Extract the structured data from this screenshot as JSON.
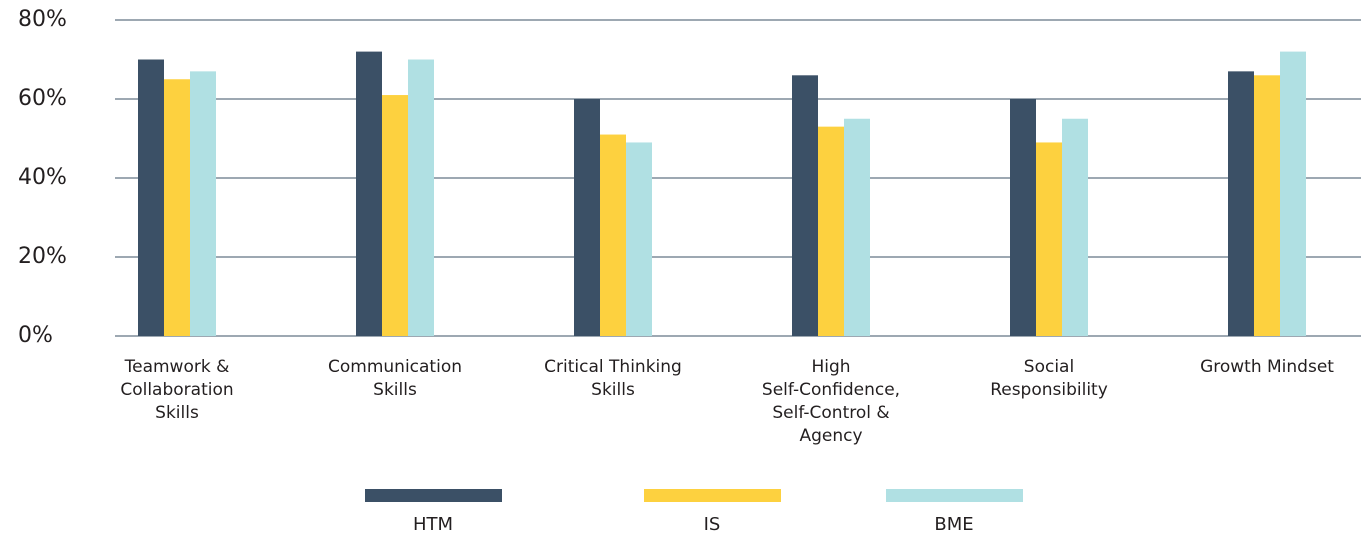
{
  "chart_data": {
    "type": "bar",
    "categories": [
      "Teamwork &\nCollaboration\nSkills",
      "Communication\nSkills",
      "Critical Thinking\nSkills",
      "High\nSelf-Confidence,\nSelf-Control &\nAgency",
      "Social\nResponsibility",
      "Growth Mindset"
    ],
    "series": [
      {
        "name": "HTM",
        "color": "#3b5066",
        "values": [
          70,
          72,
          60,
          66,
          60,
          67
        ]
      },
      {
        "name": "IS",
        "color": "#fdd13f",
        "values": [
          65,
          61,
          51,
          53,
          49,
          66
        ]
      },
      {
        "name": "BME",
        "color": "#b0e0e3",
        "values": [
          67,
          70,
          49,
          55,
          55,
          72
        ]
      }
    ],
    "ylim": [
      0,
      80
    ],
    "yticks": [
      {
        "value": 0,
        "label": "0%"
      },
      {
        "value": 20,
        "label": "20%"
      },
      {
        "value": 40,
        "label": "40%"
      },
      {
        "value": 60,
        "label": "60%"
      },
      {
        "value": 80,
        "label": "80%"
      }
    ],
    "grid": true,
    "legend": "bottom"
  }
}
